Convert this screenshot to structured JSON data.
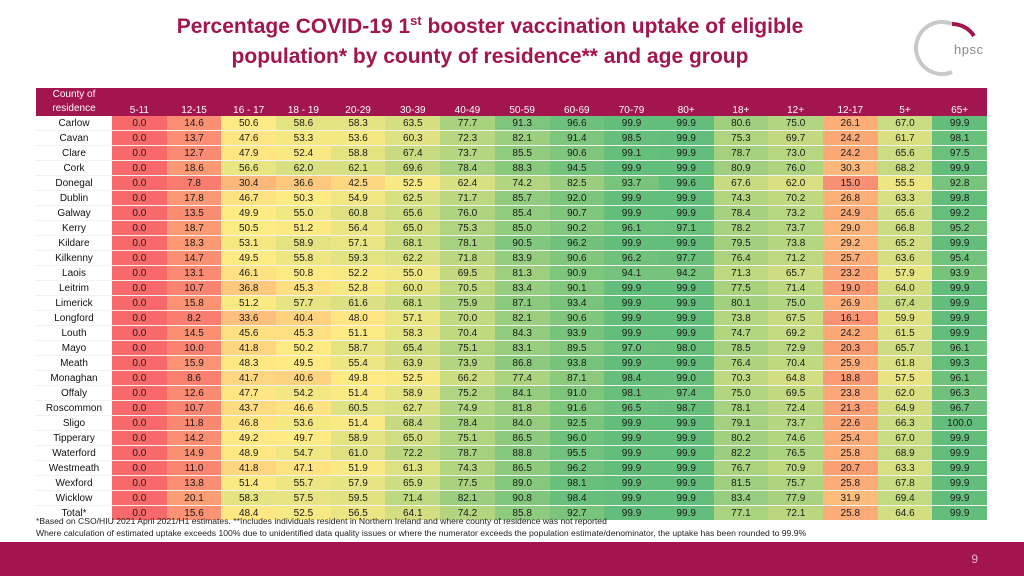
{
  "title": {
    "line1_pre": "Percentage COVID-19 1",
    "line1_sup": "st",
    "line1_post": " booster vaccination uptake of eligible",
    "line2": "population* by county of residence** and age group"
  },
  "logo": {
    "text": "hpsc",
    "accent_color": "#a3154f"
  },
  "table": {
    "county_header_line1": "County of",
    "county_header_line2": "residence",
    "columns": [
      "5-11",
      "12-15",
      "16 - 17",
      "18 - 19",
      "20-29",
      "30-39",
      "40-49",
      "50-59",
      "60-69",
      "70-79",
      "80+",
      "18+",
      "12+",
      "12-17",
      "5+",
      "65+"
    ],
    "rows": [
      {
        "county": "Carlow",
        "values": [
          "0.0",
          "14.6",
          "50.6",
          "58.6",
          "58.3",
          "63.5",
          "77.7",
          "91.3",
          "96.6",
          "99.9",
          "99.9",
          "80.6",
          "75.0",
          "26.1",
          "67.0",
          "99.9"
        ]
      },
      {
        "county": "Cavan",
        "values": [
          "0.0",
          "13.7",
          "47.6",
          "53.3",
          "53.6",
          "60.3",
          "72.3",
          "82.1",
          "91.4",
          "98.5",
          "99.9",
          "75.3",
          "69.7",
          "24.2",
          "61.7",
          "98.1"
        ]
      },
      {
        "county": "Clare",
        "values": [
          "0.0",
          "12.7",
          "47.9",
          "52.4",
          "58.8",
          "67.4",
          "73.7",
          "85.5",
          "90.6",
          "99.1",
          "99.9",
          "78.7",
          "73.0",
          "24.2",
          "65.6",
          "97.5"
        ]
      },
      {
        "county": "Cork",
        "values": [
          "0.0",
          "18.6",
          "56.6",
          "62.0",
          "62.1",
          "69.6",
          "78.4",
          "88.3",
          "94.5",
          "99.9",
          "99.9",
          "80.9",
          "76.0",
          "30.3",
          "68.2",
          "99.9"
        ]
      },
      {
        "county": "Donegal",
        "values": [
          "0.0",
          "7.8",
          "30.4",
          "36.6",
          "42.5",
          "52.5",
          "62.4",
          "74.2",
          "82.5",
          "93.7",
          "99.6",
          "67.6",
          "62.0",
          "15.0",
          "55.5",
          "92.8"
        ]
      },
      {
        "county": "Dublin",
        "values": [
          "0.0",
          "17.8",
          "46.7",
          "50.3",
          "54.9",
          "62.5",
          "71.7",
          "85.7",
          "92.0",
          "99.9",
          "99.9",
          "74.3",
          "70.2",
          "26.8",
          "63.3",
          "99.8"
        ]
      },
      {
        "county": "Galway",
        "values": [
          "0.0",
          "13.5",
          "49.9",
          "55.0",
          "60.8",
          "65.6",
          "76.0",
          "85.4",
          "90.7",
          "99.9",
          "99.9",
          "78.4",
          "73.2",
          "24.9",
          "65.6",
          "99.2"
        ]
      },
      {
        "county": "Kerry",
        "values": [
          "0.0",
          "18.7",
          "50.5",
          "51.2",
          "56.4",
          "65.0",
          "75.3",
          "85.0",
          "90.2",
          "96.1",
          "97.1",
          "78.2",
          "73.7",
          "29.0",
          "66.8",
          "95.2"
        ]
      },
      {
        "county": "Kildare",
        "values": [
          "0.0",
          "18.3",
          "53.1",
          "58.9",
          "57.1",
          "68.1",
          "78.1",
          "90.5",
          "96.2",
          "99.9",
          "99.9",
          "79.5",
          "73.8",
          "29.2",
          "65.2",
          "99.9"
        ]
      },
      {
        "county": "Kilkenny",
        "values": [
          "0.0",
          "14.7",
          "49.5",
          "55.8",
          "59.3",
          "62.2",
          "71.8",
          "83.9",
          "90.6",
          "96.2",
          "97.7",
          "76.4",
          "71.2",
          "25.7",
          "63.6",
          "95.4"
        ]
      },
      {
        "county": "Laois",
        "values": [
          "0.0",
          "13.1",
          "46.1",
          "50.8",
          "52.2",
          "55.0",
          "69.5",
          "81.3",
          "90.9",
          "94.1",
          "94.2",
          "71.3",
          "65.7",
          "23.2",
          "57.9",
          "93.9"
        ]
      },
      {
        "county": "Leitrim",
        "values": [
          "0.0",
          "10.7",
          "36.8",
          "45.3",
          "52.8",
          "60.0",
          "70.5",
          "83.4",
          "90.1",
          "99.9",
          "99.9",
          "77.5",
          "71.4",
          "19.0",
          "64.0",
          "99.9"
        ]
      },
      {
        "county": "Limerick",
        "values": [
          "0.0",
          "15.8",
          "51.2",
          "57.7",
          "61.6",
          "68.1",
          "75.9",
          "87.1",
          "93.4",
          "99.9",
          "99.9",
          "80.1",
          "75.0",
          "26.9",
          "67.4",
          "99.9"
        ]
      },
      {
        "county": "Longford",
        "values": [
          "0.0",
          "8.2",
          "33.6",
          "40.4",
          "48.0",
          "57.1",
          "70.0",
          "82.1",
          "90.6",
          "99.9",
          "99.9",
          "73.8",
          "67.5",
          "16.1",
          "59.9",
          "99.9"
        ]
      },
      {
        "county": "Louth",
        "values": [
          "0.0",
          "14.5",
          "45.6",
          "45.3",
          "51.1",
          "58.3",
          "70.4",
          "84.3",
          "93.9",
          "99.9",
          "99.9",
          "74.7",
          "69.2",
          "24.2",
          "61.5",
          "99.9"
        ]
      },
      {
        "county": "Mayo",
        "values": [
          "0.0",
          "10.0",
          "41.8",
          "50.2",
          "58.7",
          "65.4",
          "75.1",
          "83.1",
          "89.5",
          "97.0",
          "98.0",
          "78.5",
          "72.9",
          "20.3",
          "65.7",
          "96.1"
        ]
      },
      {
        "county": "Meath",
        "values": [
          "0.0",
          "15.9",
          "48.3",
          "49.5",
          "55.4",
          "63.9",
          "73.9",
          "86.8",
          "93.8",
          "99.9",
          "99.9",
          "76.4",
          "70.4",
          "25.9",
          "61.8",
          "99.3"
        ]
      },
      {
        "county": "Monaghan",
        "values": [
          "0.0",
          "8.6",
          "41.7",
          "40.6",
          "49.8",
          "52.5",
          "66.2",
          "77.4",
          "87.1",
          "98.4",
          "99.0",
          "70.3",
          "64.8",
          "18.8",
          "57.5",
          "96.1"
        ]
      },
      {
        "county": "Offaly",
        "values": [
          "0.0",
          "12.6",
          "47.7",
          "54.2",
          "51.4",
          "58.9",
          "75.2",
          "84.1",
          "91.0",
          "98.1",
          "97.4",
          "75.0",
          "69.5",
          "23.8",
          "62.0",
          "96.3"
        ]
      },
      {
        "county": "Roscommon",
        "values": [
          "0.0",
          "10.7",
          "43.7",
          "46.6",
          "60.5",
          "62.7",
          "74.9",
          "81.8",
          "91.6",
          "96.5",
          "98.7",
          "78.1",
          "72.4",
          "21.3",
          "64.9",
          "96.7"
        ]
      },
      {
        "county": "Sligo",
        "values": [
          "0.0",
          "11.8",
          "46.8",
          "53.6",
          "51.4",
          "68.4",
          "78.4",
          "84.0",
          "92.5",
          "99.9",
          "99.9",
          "79.1",
          "73.7",
          "22.6",
          "66.3",
          "100.0"
        ]
      },
      {
        "county": "Tipperary",
        "values": [
          "0.0",
          "14.2",
          "49.2",
          "49.7",
          "58.9",
          "65.0",
          "75.1",
          "86.5",
          "96.0",
          "99.9",
          "99.9",
          "80.2",
          "74.6",
          "25.4",
          "67.0",
          "99.9"
        ]
      },
      {
        "county": "Waterford",
        "values": [
          "0.0",
          "14.9",
          "48.9",
          "54.7",
          "61.0",
          "72.2",
          "78.7",
          "88.8",
          "95.5",
          "99.9",
          "99.9",
          "82.2",
          "76.5",
          "25.8",
          "68.9",
          "99.9"
        ]
      },
      {
        "county": "Westmeath",
        "values": [
          "0.0",
          "11.0",
          "41.8",
          "47.1",
          "51.9",
          "61.3",
          "74.3",
          "86.5",
          "96.2",
          "99.9",
          "99.9",
          "76.7",
          "70.9",
          "20.7",
          "63.3",
          "99.9"
        ]
      },
      {
        "county": "Wexford",
        "values": [
          "0.0",
          "13.8",
          "51.4",
          "55.7",
          "57.9",
          "65.9",
          "77.5",
          "89.0",
          "98.1",
          "99.9",
          "99.9",
          "81.5",
          "75.7",
          "25.8",
          "67.8",
          "99.9"
        ]
      },
      {
        "county": "Wicklow",
        "values": [
          "0.0",
          "20.1",
          "58.3",
          "57.5",
          "59.5",
          "71.4",
          "82.1",
          "90.8",
          "98.4",
          "99.9",
          "99.9",
          "83.4",
          "77.9",
          "31.9",
          "69.4",
          "99.9"
        ]
      },
      {
        "county": "Total*",
        "values": [
          "0.0",
          "15.6",
          "48.4",
          "52.5",
          "56.5",
          "64.1",
          "74.2",
          "85.8",
          "92.7",
          "99.9",
          "99.9",
          "77.1",
          "72.1",
          "25.8",
          "64.6",
          "99.9"
        ]
      }
    ]
  },
  "footnote_line1": "*Based on CSO/HIU 2021 April 2021/H1 estimates. **Includes individuals resident in Northern Ireland and where county of residence was not reported",
  "footnote_line2": "Where calculation of estimated uptake exceeds 100% due to unidentified data quality issues or where the numerator exceeds the population estimate/denominator, the uptake has been rounded to 99.9%",
  "page_number": "9",
  "colors": {
    "header_bg": "#a3154f",
    "title": "#a3154f",
    "scale_low": "#f8696b",
    "scale_mid": "#ffeb84",
    "scale_high": "#63be7b"
  }
}
